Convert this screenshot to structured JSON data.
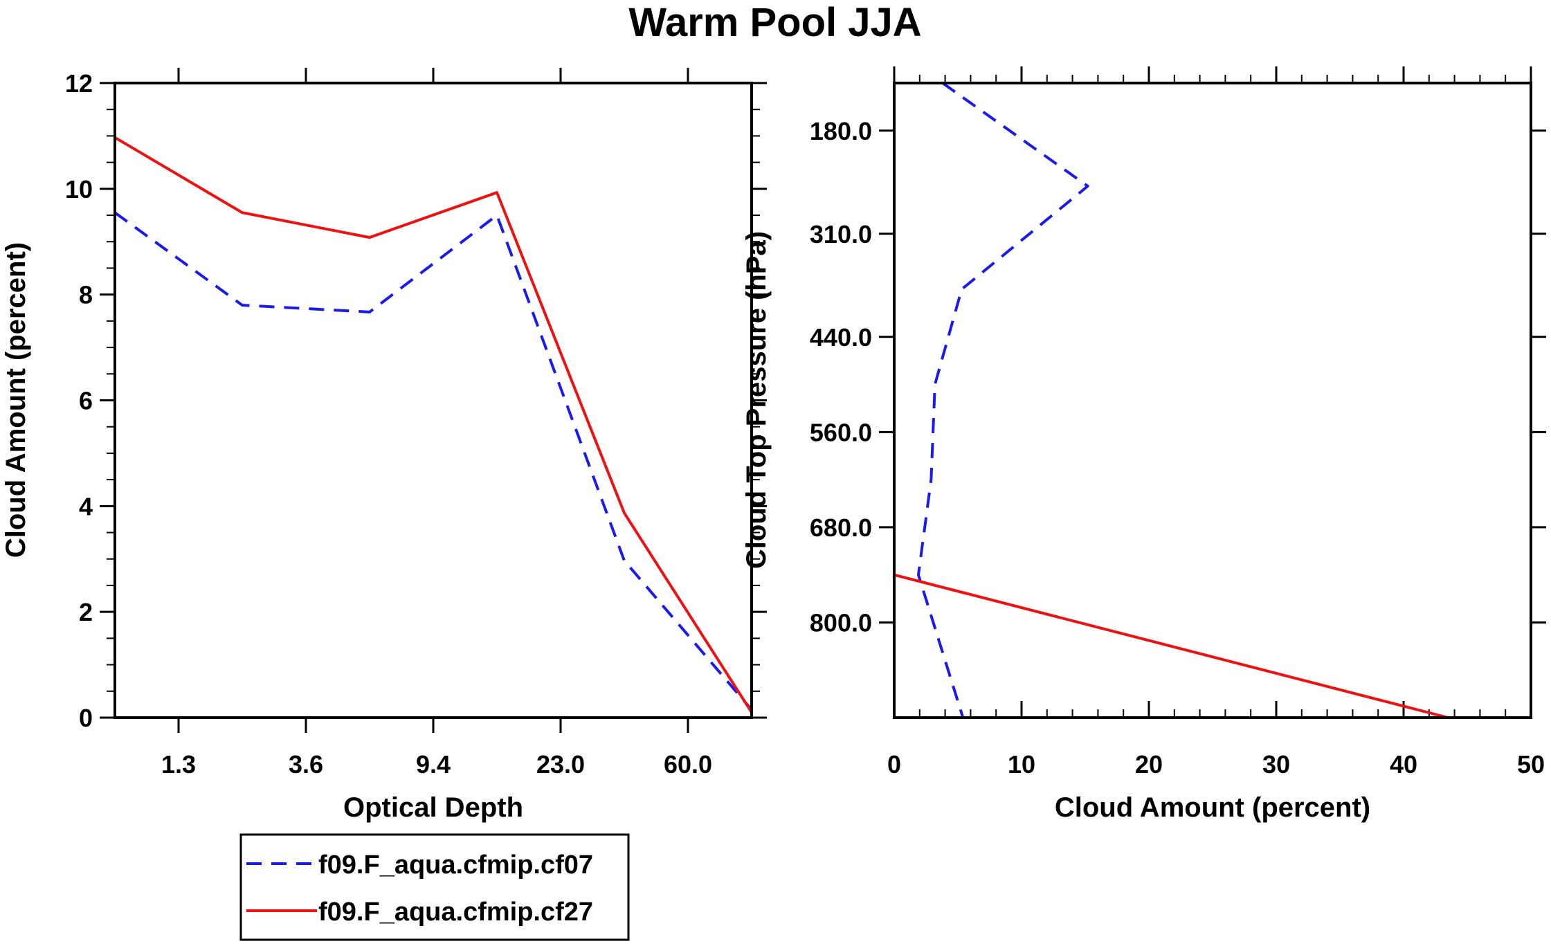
{
  "figure_title": "Warm Pool JJA",
  "colors": {
    "series1": "#1a1aee",
    "series2": "#ee1111",
    "axis": "#000000"
  },
  "legend": {
    "entries": [
      {
        "label": "f09.F_aqua.cfmip.cf07",
        "style": "dashed",
        "color": "#1a1aee"
      },
      {
        "label": "f09.F_aqua.cfmip.cf27",
        "style": "solid",
        "color": "#ee1111"
      }
    ]
  },
  "chart_data": [
    {
      "type": "line",
      "xlabel": "Optical Depth",
      "ylabel": "Cloud Amount (percent)",
      "x_tick_labels": [
        "1.3",
        "3.6",
        "9.4",
        "23.0",
        "60.0"
      ],
      "x_tick_positions": [
        0.5,
        1.5,
        2.5,
        3.5,
        4.5
      ],
      "xlim": [
        0,
        5
      ],
      "ylim": [
        0,
        12
      ],
      "y_ticks": [
        0,
        2,
        4,
        6,
        8,
        10,
        12
      ],
      "x": [
        0,
        1,
        2,
        3,
        4,
        5
      ],
      "series": [
        {
          "name": "f09.F_aqua.cfmip.cf07",
          "style": "dashed",
          "values": [
            9.55,
            7.8,
            7.67,
            9.5,
            2.97,
            0.15
          ]
        },
        {
          "name": "f09.F_aqua.cfmip.cf27",
          "style": "solid",
          "values": [
            10.97,
            9.55,
            9.08,
            9.93,
            3.87,
            0.1
          ]
        }
      ]
    },
    {
      "type": "line",
      "xlabel": "Cloud Amount (percent)",
      "ylabel": "Cloud Top Pressure (hPa)",
      "xlim": [
        0,
        50
      ],
      "x_ticks": [
        0,
        10,
        20,
        30,
        40,
        50
      ],
      "ylim": [
        120,
        920
      ],
      "y_inverted": true,
      "y_tick_labels": [
        "180.0",
        "310.0",
        "440.0",
        "560.0",
        "680.0",
        "800.0"
      ],
      "y_tick_positions": [
        180,
        310,
        440,
        560,
        680,
        800
      ],
      "series": [
        {
          "name": "f09.F_aqua.cfmip.cf07",
          "style": "dashed",
          "points": [
            [
              3.8,
              120
            ],
            [
              15.2,
              250
            ],
            [
              5.3,
              380
            ],
            [
              3.2,
              500
            ],
            [
              2.9,
              620
            ],
            [
              1.9,
              740
            ],
            [
              5.4,
              920
            ]
          ]
        },
        {
          "name": "f09.F_aqua.cfmip.cf27",
          "style": "solid",
          "points": [
            [
              0,
              740
            ],
            [
              43.5,
              920
            ]
          ]
        }
      ]
    }
  ]
}
